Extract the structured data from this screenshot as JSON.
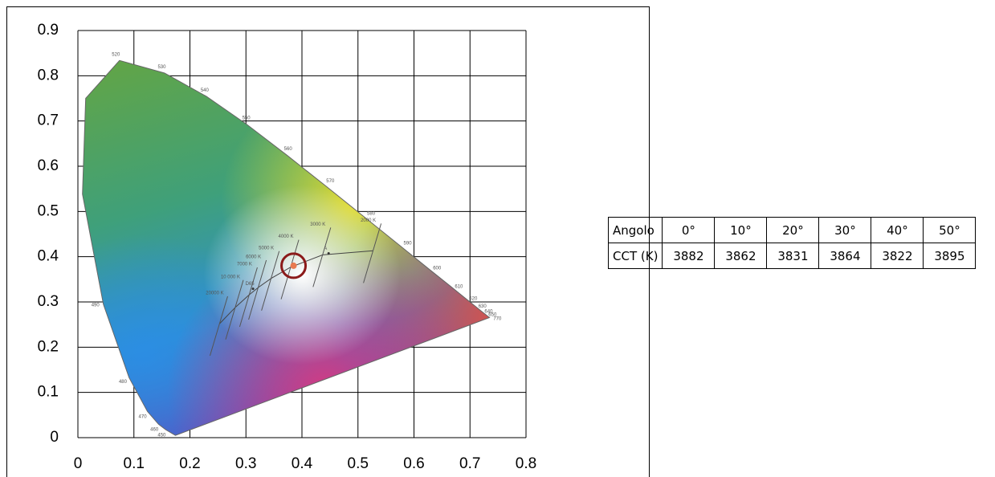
{
  "chart_data": {
    "type": "chromaticity",
    "xlim": [
      0,
      0.8
    ],
    "ylim": [
      0,
      0.9
    ],
    "xticks": [
      0,
      0.1,
      0.2,
      0.3,
      0.4,
      0.5,
      0.6,
      0.7,
      0.8
    ],
    "yticks": [
      0,
      0.1,
      0.2,
      0.3,
      0.4,
      0.5,
      0.6,
      0.7,
      0.8,
      0.9
    ],
    "grid": true,
    "locus": {
      "x": [
        0.1741,
        0.1566,
        0.144,
        0.1241,
        0.0913,
        0.0454,
        0.0082,
        0.0139,
        0.0743,
        0.1547,
        0.2296,
        0.3016,
        0.3731,
        0.4441,
        0.5125,
        0.5752,
        0.627,
        0.6658,
        0.6915,
        0.7079,
        0.719,
        0.726,
        0.7347
      ],
      "y": [
        0.005,
        0.0177,
        0.0297,
        0.0578,
        0.1327,
        0.295,
        0.5384,
        0.7502,
        0.8338,
        0.8059,
        0.7543,
        0.6923,
        0.6245,
        0.5547,
        0.4866,
        0.4242,
        0.3725,
        0.334,
        0.3083,
        0.292,
        0.2809,
        0.274,
        0.2653
      ],
      "labels": [
        null,
        450,
        460,
        470,
        480,
        490,
        null,
        null,
        520,
        530,
        540,
        550,
        560,
        570,
        580,
        590,
        600,
        610,
        620,
        630,
        640,
        650,
        770
      ]
    },
    "planckian": {
      "x": [
        0.527,
        0.437,
        0.38,
        0.345,
        0.322,
        0.306,
        0.281,
        0.253
      ],
      "y": [
        0.413,
        0.404,
        0.377,
        0.352,
        0.332,
        0.316,
        0.288,
        0.252
      ],
      "labels": [
        "2000 K",
        "3000 K",
        "4000 K",
        "5000 K",
        "6000 K",
        "7000 K",
        "10 000 K",
        "20000 K"
      ]
    },
    "reference_points": [
      {
        "label": "D65",
        "x": 0.3127,
        "y": 0.329
      },
      {
        "label": "A",
        "x": 0.4476,
        "y": 0.4074
      }
    ],
    "marked_point": {
      "x": 0.385,
      "y": 0.38,
      "color": "#8b1a1a"
    }
  },
  "table": {
    "header": [
      "Angolo",
      "0°",
      "10°",
      "20°",
      "30°",
      "40°",
      "50°"
    ],
    "rows": [
      [
        "CCT (K)",
        3882,
        3862,
        3831,
        3864,
        3822,
        3895
      ]
    ]
  }
}
